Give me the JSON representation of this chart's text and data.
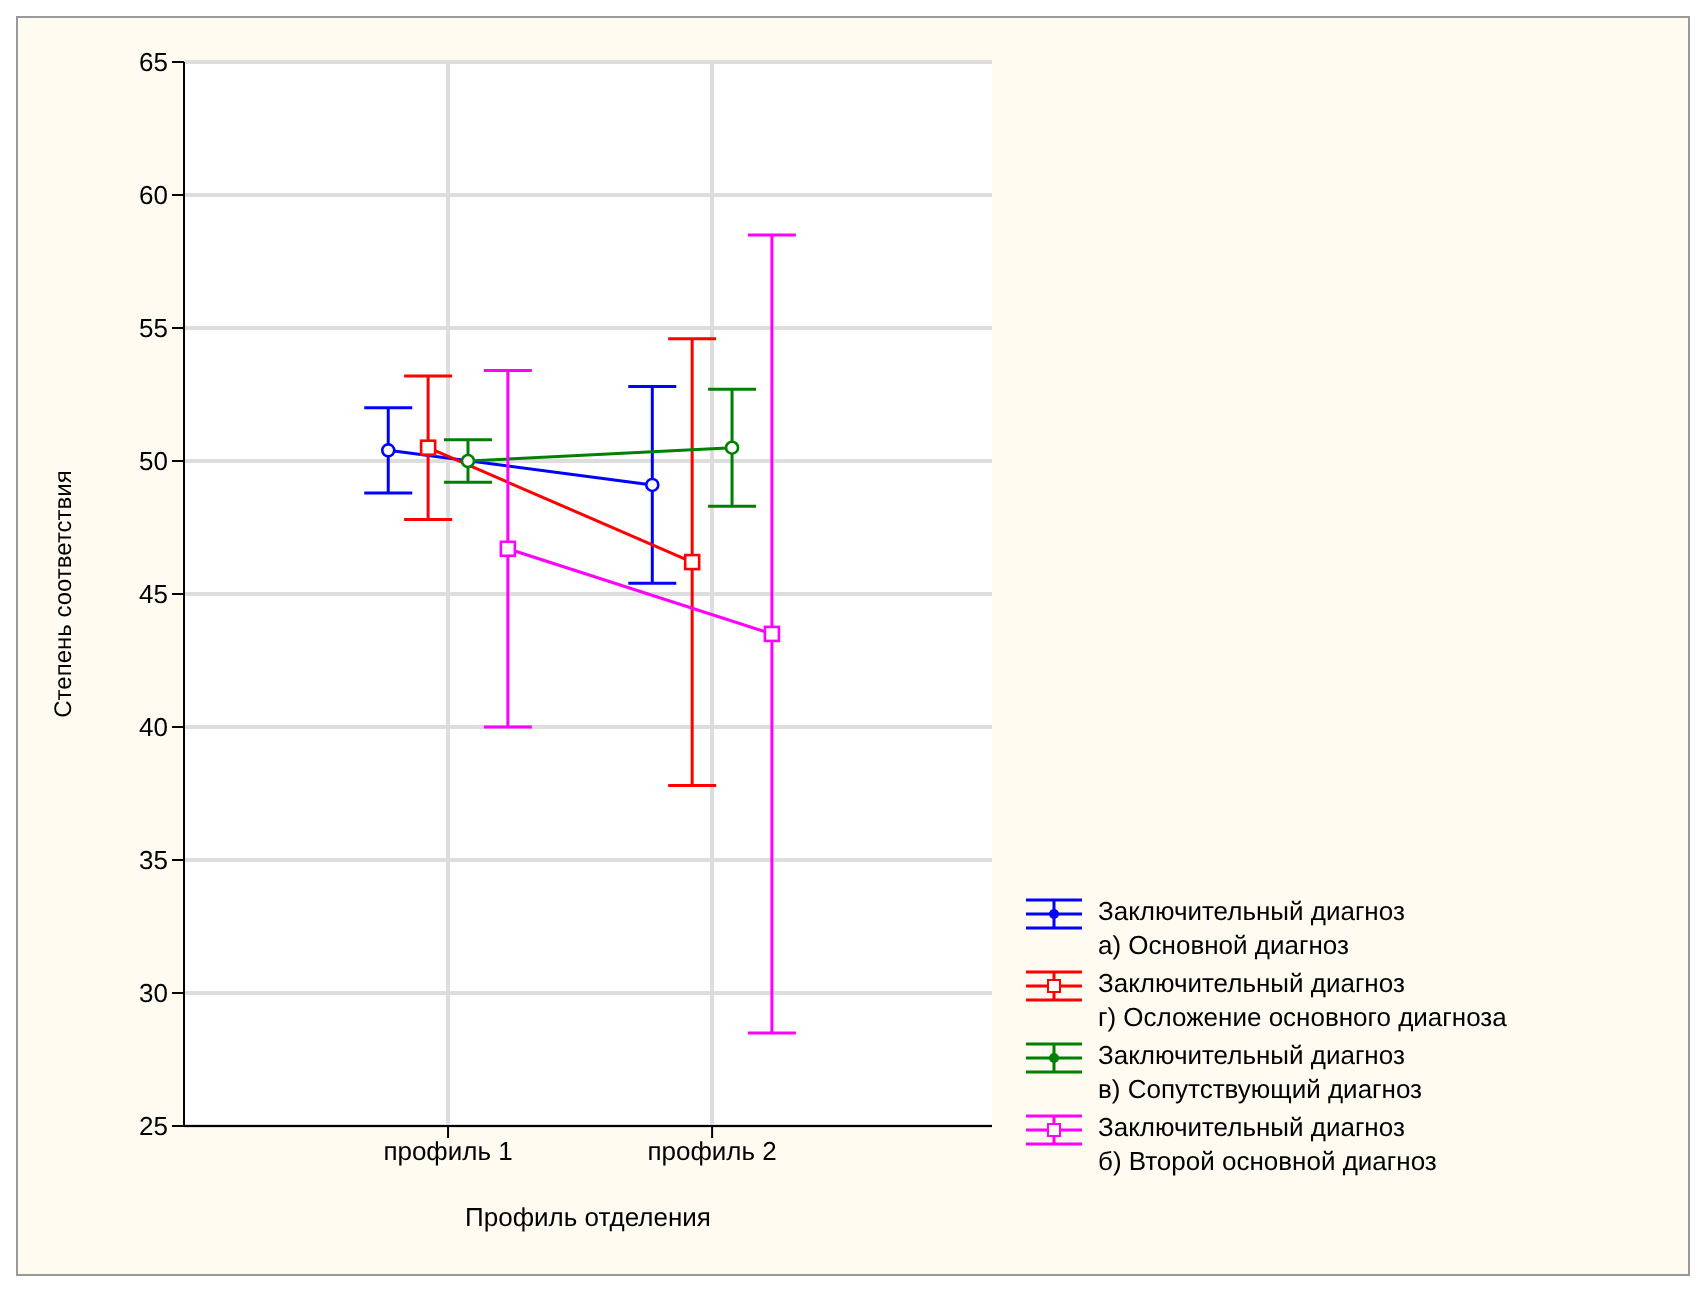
{
  "chart_data": {
    "type": "line",
    "xlabel": "Профиль отделения",
    "ylabel": "Степень соответствия",
    "categories": [
      "профиль 1",
      "профиль 2"
    ],
    "series": [
      {
        "name": "Заключительный диагноз\nа) Основной диагноз",
        "color": "#0000ff",
        "marker": "circle",
        "values": [
          50.4,
          49.1
        ],
        "errors": [
          1.6,
          3.7
        ]
      },
      {
        "name": "Заключительный диагноз\nг) Осложение основного диагноза",
        "color": "#ff0000",
        "marker": "square",
        "values": [
          50.5,
          46.2
        ],
        "errors": [
          2.7,
          8.4
        ]
      },
      {
        "name": "Заключительный диагноз\nв) Сопутствующий диагноз",
        "color": "#008000",
        "marker": "circle",
        "values": [
          50.0,
          50.5
        ],
        "errors": [
          0.8,
          2.2
        ]
      },
      {
        "name": "Заключительный диагноз\nб) Второй основной диагноз",
        "color": "#ff00ff",
        "marker": "square",
        "values": [
          46.7,
          43.5
        ],
        "errors": [
          6.7,
          15.0
        ]
      }
    ],
    "ylim": [
      25,
      65
    ],
    "yticks": [
      25,
      30,
      35,
      40,
      45,
      50,
      55,
      60,
      65
    ],
    "grid": true,
    "legend": "right"
  }
}
